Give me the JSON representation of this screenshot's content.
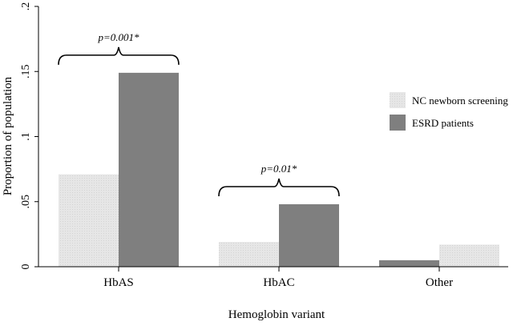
{
  "chart_data": {
    "type": "bar",
    "categories": [
      "HbAS",
      "HbAC",
      "Other"
    ],
    "series": [
      {
        "name": "NC newborn screening",
        "color": "#e3e3e3",
        "values": [
          0.071,
          0.019,
          0.017
        ]
      },
      {
        "name": "ESRD patients",
        "color": "#7f7f7f",
        "values": [
          0.149,
          0.048,
          0.005
        ]
      }
    ],
    "series_order": [
      [
        0,
        1
      ],
      [
        0,
        1
      ],
      [
        1,
        0
      ]
    ],
    "xlabel": "Hemoglobin variant",
    "ylabel": "Proportion of population",
    "ylim": [
      0,
      0.2
    ],
    "yticks": [
      {
        "value": 0,
        "label": "0"
      },
      {
        "value": 0.05,
        "label": ".05"
      },
      {
        "value": 0.1,
        "label": ".1"
      },
      {
        "value": 0.15,
        "label": ".15"
      },
      {
        "value": 0.2,
        "label": ".2"
      }
    ],
    "annotations": [
      {
        "text": "p=0.001*",
        "category": "HbAS"
      },
      {
        "text": "p=0.01*",
        "category": "HbAC"
      }
    ],
    "legend_position": "right",
    "grid": false
  }
}
